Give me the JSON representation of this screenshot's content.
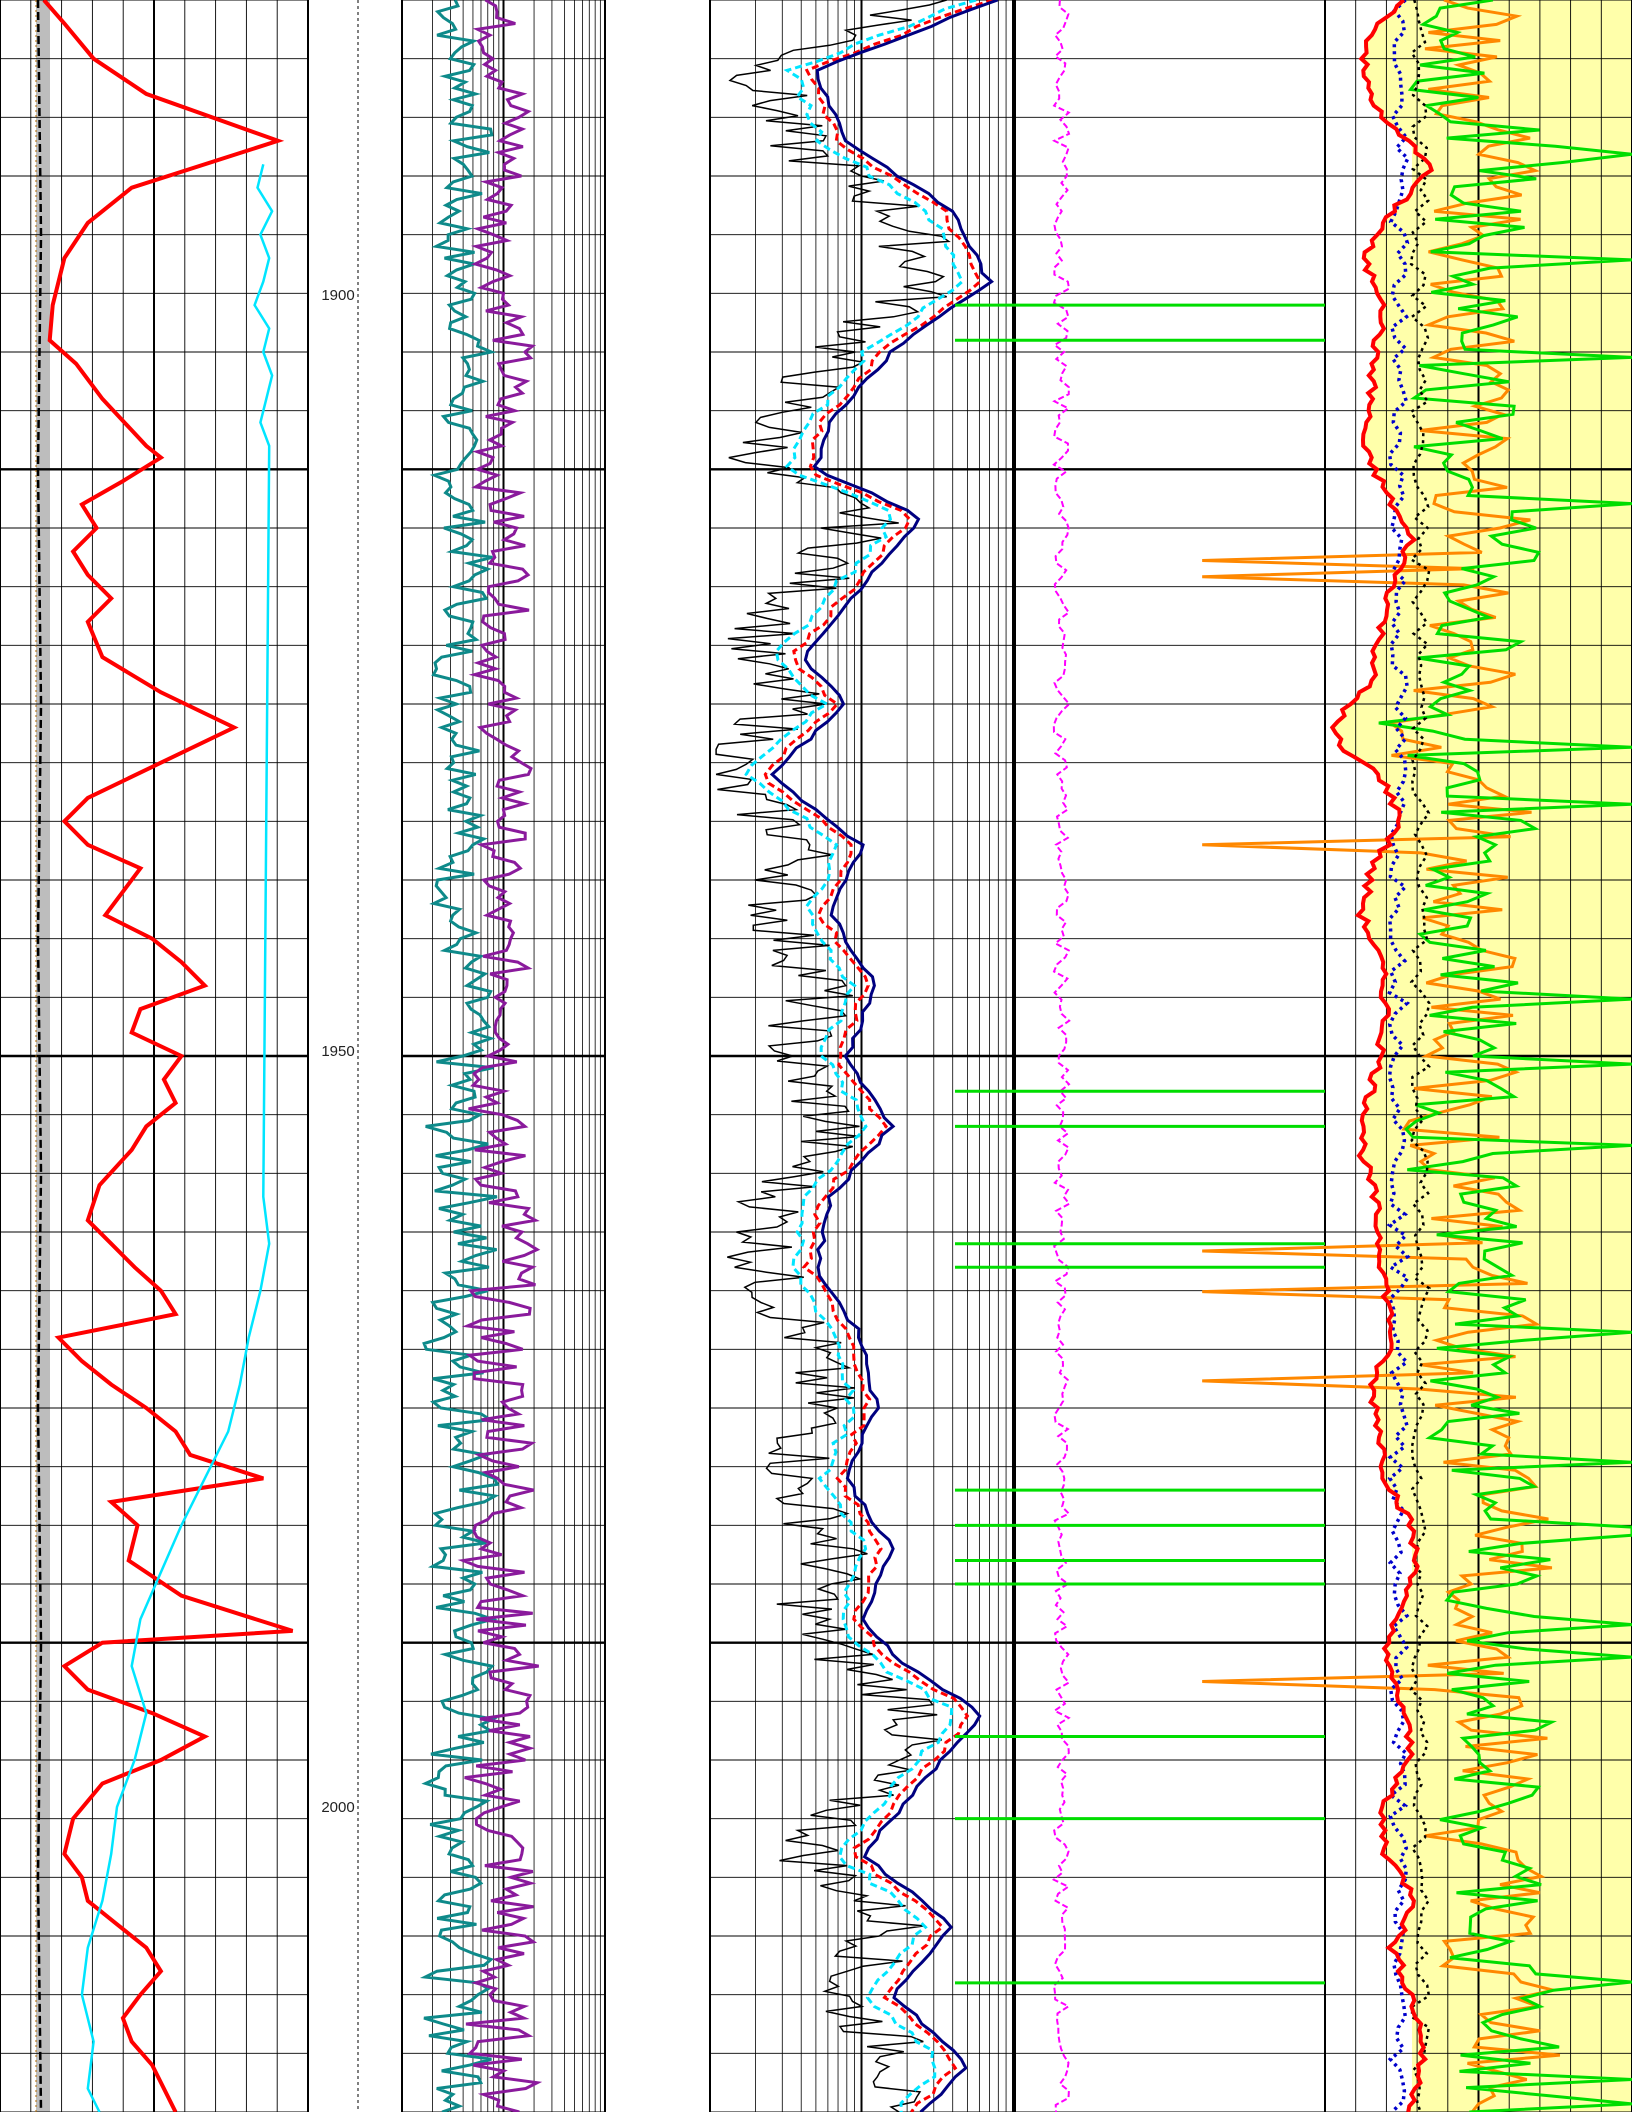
{
  "chart_data": {
    "type": "line",
    "title": "",
    "depth_axis": {
      "range": [
        1860,
        2040
      ],
      "tick_labels": [
        "1900",
        "1950",
        "2000"
      ],
      "major_step": 50,
      "minor_step": 5
    },
    "tracks": [
      {
        "id": "track-1",
        "grid": "linear",
        "series": [
          {
            "color": "#ff0000",
            "depth": [
              1860,
              1862,
              1865,
              1868,
              1872,
              1876,
              1879,
              1882,
              1886,
              1889,
              1891,
              1894,
              1898,
              1899,
              1901,
              1903,
              1905,
              1907,
              1909,
              1911,
              1913,
              1916,
              1919,
              1922,
              1925,
              1928,
              1930,
              1932,
              1934,
              1936,
              1938,
              1940,
              1942,
              1944,
              1946,
              1948,
              1950,
              1952,
              1954,
              1956,
              1958,
              1961,
              1964,
              1966,
              1968,
              1970,
              1972,
              1974,
              1976,
              1978,
              1980,
              1982,
              1984,
              1986,
              1988,
              1990,
              1993,
              1996,
              1999,
              2000,
              2002,
              2004,
              2006,
              2008,
              2010,
              2012,
              2015,
              2018,
              2020,
              2022,
              2024,
              2026,
              2028,
              2030,
              2032,
              2034,
              2036,
              2040
            ],
            "value": [
              0.15,
              0.22,
              0.32,
              0.5,
              0.95,
              0.45,
              0.3,
              0.22,
              0.18,
              0.17,
              0.26,
              0.35,
              0.5,
              0.55,
              0.42,
              0.28,
              0.33,
              0.25,
              0.3,
              0.38,
              0.3,
              0.35,
              0.55,
              0.8,
              0.55,
              0.3,
              0.22,
              0.3,
              0.48,
              0.42,
              0.36,
              0.52,
              0.62,
              0.7,
              0.48,
              0.45,
              0.62,
              0.56,
              0.6,
              0.5,
              0.45,
              0.34,
              0.3,
              0.38,
              0.46,
              0.55,
              0.6,
              0.2,
              0.28,
              0.38,
              0.5,
              0.6,
              0.65,
              0.9,
              0.38,
              0.47,
              0.44,
              0.62,
              1.0,
              0.35,
              0.22,
              0.3,
              0.52,
              0.7,
              0.55,
              0.35,
              0.25,
              0.22,
              0.28,
              0.3,
              0.4,
              0.5,
              0.55,
              0.48,
              0.42,
              0.45,
              0.52,
              0.6
            ]
          },
          {
            "color": "#000000",
            "dash": true,
            "depth": [
              1860,
              1880,
              1900,
              1920,
              1940,
              1960,
              1980,
              2000,
              2020,
              2040
            ],
            "value": [
              0.13,
              0.14,
              0.13,
              0.14,
              0.13,
              0.14,
              0.13,
              0.14,
              0.13,
              0.14
            ]
          },
          {
            "color": "#00e5ff",
            "depth": [
              1874,
              1876,
              1878,
              1880,
              1882,
              1884,
              1886,
              1888,
              1890,
              1892,
              1894,
              1896,
              1898,
              1962,
              1966,
              1970,
              1974,
              1978,
              1982,
              1986,
              1990,
              1994,
              1998,
              2002,
              2006,
              2010,
              2014,
              2018,
              2022,
              2026,
              2030,
              2034,
              2038,
              2040
            ],
            "value": [
              0.9,
              0.88,
              0.93,
              0.89,
              0.92,
              0.9,
              0.87,
              0.92,
              0.9,
              0.93,
              0.91,
              0.89,
              0.92,
              0.9,
              0.92,
              0.89,
              0.85,
              0.82,
              0.78,
              0.7,
              0.62,
              0.55,
              0.48,
              0.45,
              0.5,
              0.46,
              0.4,
              0.38,
              0.35,
              0.3,
              0.28,
              0.32,
              0.3,
              0.34
            ]
          }
        ]
      },
      {
        "id": "track-2",
        "grid": "logarithmic",
        "series": [
          {
            "color": "#0e8a8a",
            "depth_start": 1860,
            "depth_end": 2040,
            "samples": 360
          },
          {
            "color": "#8a1a9c",
            "depth_start": 1860,
            "depth_end": 2040,
            "samples": 360
          }
        ]
      },
      {
        "id": "track-3",
        "grid": "logarithmic",
        "series": [
          {
            "color": "#000000",
            "depth_start": 1860,
            "depth_end": 2040,
            "samples": 420
          },
          {
            "color": "#00e5ff",
            "dash": true,
            "depth_start": 1860,
            "depth_end": 2040,
            "samples": 240
          },
          {
            "color": "#ff0000",
            "dash": true,
            "depth_start": 1860,
            "depth_end": 2040,
            "samples": 240
          },
          {
            "color": "#000080",
            "depth_start": 1860,
            "depth_end": 2040,
            "samples": 240
          }
        ]
      },
      {
        "id": "track-4",
        "grid": "none",
        "series": [
          {
            "color": "#ff00ff",
            "dash": true,
            "depth_start": 1860,
            "depth_end": 2040,
            "samples": 300
          },
          {
            "color": "#00dd00",
            "style": "spikes",
            "depth": [
              1886,
              1889,
              1953,
              1956,
              1966,
              1968,
              1987,
              1990,
              1993,
              1995,
              2008,
              2015,
              2029
            ],
            "extent": [
              0.0,
              0.5
            ]
          }
        ]
      },
      {
        "id": "track-5",
        "grid": "linear",
        "fill_color": "#ffffaa",
        "series": [
          {
            "color": "#ff0000",
            "depth": [
              1860,
              1863,
              1866,
              1870,
              1874,
              1878,
              1882,
              1886,
              1890,
              1894,
              1898,
              1902,
              1906,
              1910,
              1914,
              1918,
              1922,
              1924,
              1926,
              1930,
              1934,
              1938,
              1942,
              1946,
              1950,
              1954,
              1958,
              1962,
              1966,
              1970,
              1974,
              1978,
              1982,
              1986,
              1990,
              1994,
              1998,
              2002,
              2006,
              2010,
              2014,
              2018,
              2022,
              2026,
              2030,
              2034,
              2038,
              2040
            ],
            "value": [
              0.25,
              0.15,
              0.12,
              0.18,
              0.35,
              0.22,
              0.12,
              0.2,
              0.16,
              0.15,
              0.12,
              0.2,
              0.28,
              0.22,
              0.18,
              0.15,
              0.02,
              0.06,
              0.18,
              0.25,
              0.15,
              0.12,
              0.18,
              0.2,
              0.18,
              0.14,
              0.12,
              0.16,
              0.18,
              0.2,
              0.22,
              0.15,
              0.18,
              0.2,
              0.28,
              0.3,
              0.22,
              0.2,
              0.26,
              0.28,
              0.18,
              0.2,
              0.3,
              0.22,
              0.28,
              0.32,
              0.3,
              0.28
            ]
          },
          {
            "color": "#ff8800",
            "depth_start": 1860,
            "depth_end": 2040,
            "samples": 260
          },
          {
            "color": "#00dd00",
            "depth_start": 1860,
            "depth_end": 2040,
            "samples": 260
          },
          {
            "color": "#0000cc",
            "dash": true,
            "depth_start": 1860,
            "depth_end": 2040,
            "samples": 200
          },
          {
            "color": "#000000",
            "dash": true,
            "depth_start": 1860,
            "depth_end": 2040,
            "samples": 200
          }
        ]
      }
    ],
    "legend": "none",
    "grid": true
  }
}
